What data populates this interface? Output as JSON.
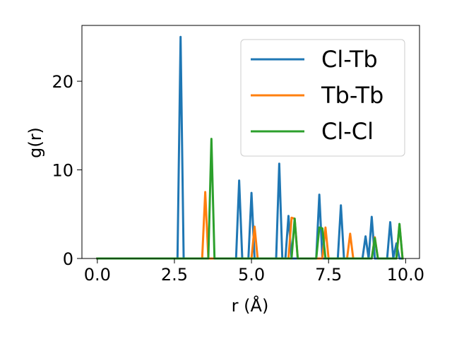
{
  "chart_data": {
    "type": "line",
    "xlabel": "r (Å)",
    "ylabel": "g(r)",
    "xlim": [
      -0.5,
      10.45
    ],
    "ylim": [
      0,
      26.3
    ],
    "xticks": [
      0.0,
      2.5,
      5.0,
      7.5,
      10.0
    ],
    "xtick_labels": [
      "0.0",
      "2.5",
      "5.0",
      "7.5",
      "10.0"
    ],
    "yticks": [
      0,
      10,
      20
    ],
    "ytick_labels": [
      "0",
      "10",
      "20"
    ],
    "grid": false,
    "legend_position": "top-right",
    "series": [
      {
        "name": "Cl-Tb",
        "color": "#1f77b4",
        "x": [
          0.0,
          2.6,
          2.7,
          2.8,
          4.5,
          4.6,
          4.7,
          4.9,
          5.0,
          5.1,
          5.8,
          5.9,
          6.0,
          6.1,
          6.2,
          6.3,
          7.1,
          7.2,
          7.3,
          7.8,
          7.9,
          8.0,
          8.6,
          8.7,
          8.8,
          8.9,
          9.0,
          9.4,
          9.5,
          9.6,
          9.7,
          9.8,
          9.9
        ],
        "y": [
          0,
          0,
          25.0,
          0,
          0,
          8.8,
          0,
          0,
          7.4,
          0,
          0,
          10.7,
          0,
          0,
          4.8,
          0,
          0,
          7.2,
          0,
          0,
          6.0,
          0,
          0,
          2.5,
          0,
          4.7,
          0,
          0,
          4.1,
          0,
          1.7,
          0,
          0
        ]
      },
      {
        "name": "Tb-Tb",
        "color": "#ff7f0e",
        "x": [
          0.0,
          3.4,
          3.5,
          3.6,
          5.0,
          5.1,
          5.2,
          6.2,
          6.3,
          6.4,
          6.5,
          7.3,
          7.4,
          7.5,
          8.1,
          8.2,
          8.3,
          8.9,
          9.0,
          9.1,
          9.7,
          9.8,
          9.9
        ],
        "y": [
          0,
          0,
          7.5,
          0,
          0,
          3.6,
          0,
          0,
          4.6,
          4.5,
          0,
          0,
          3.5,
          0,
          0,
          2.8,
          0,
          0,
          2.4,
          0,
          0,
          3.8,
          0
        ]
      },
      {
        "name": "Cl-Cl",
        "color": "#2ca02c",
        "x": [
          0.0,
          3.6,
          3.7,
          3.8,
          6.3,
          6.4,
          6.5,
          7.1,
          7.2,
          7.3,
          7.4,
          8.9,
          9.0,
          9.1,
          9.7,
          9.8,
          9.9
        ],
        "y": [
          0,
          0,
          13.5,
          0,
          0,
          4.5,
          0,
          0,
          3.5,
          3.4,
          0,
          0,
          2.3,
          0,
          0,
          3.9,
          0
        ]
      }
    ]
  }
}
